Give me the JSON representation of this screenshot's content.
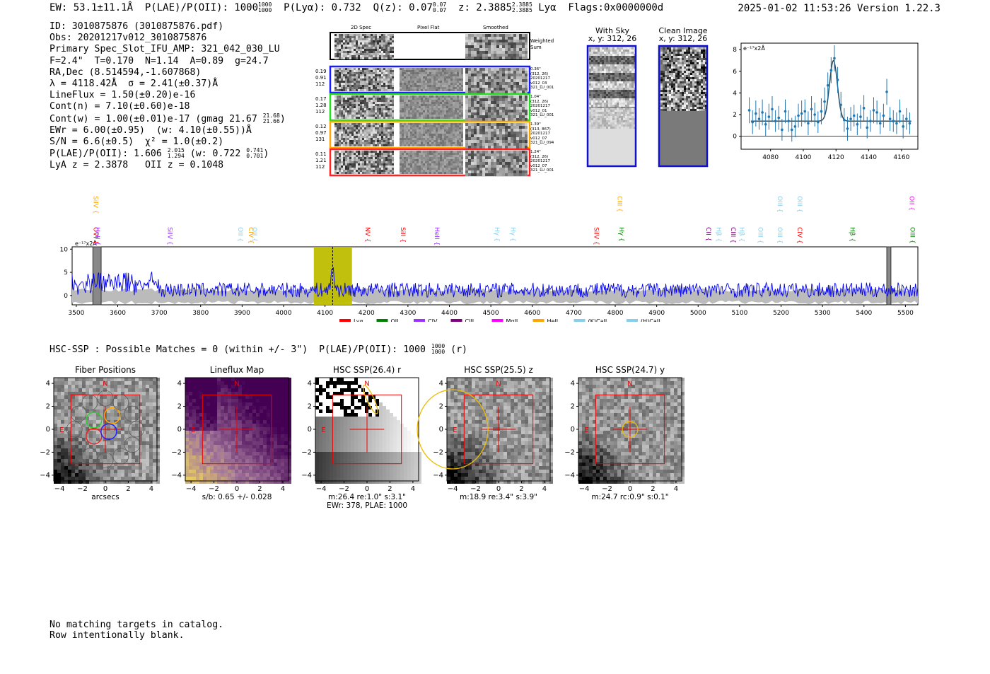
{
  "header": {
    "ew": "EW: 53.1±11.1Å",
    "plae_label": "P(LAE)/P(OII): 1000",
    "plae_hi": "1000",
    "plae_lo": "1000",
    "plya": "P(Lyα): 0.732",
    "qz_label": "Q(z): 0.07",
    "qz_hi": "0.07",
    "qz_lo": "0.07",
    "z_label": "z: 2.3885",
    "z_hi": "2.3885",
    "z_lo": "2.3885",
    "line": "Lyα",
    "flags": "Flags:0x0000000d",
    "timestamp": "2025-01-02 11:53:26",
    "version": "Version 1.22.3"
  },
  "info": {
    "id": "ID: 3010875876 (3010875876.pdf)",
    "obs": "Obs: 20201217v012_3010875876",
    "primary": "Primary Spec_Slot_IFU_AMP: 321_042_030_LU",
    "fits": "F=2.4\"  T=0.170  N=1.14  A=0.89  g=24.7",
    "radec": "RA,Dec (8.514594,-1.607868)",
    "lambda": "λ = 4118.42Å  σ = 2.41(±0.37)Å",
    "lineflux": "LineFlux = 1.50(±0.20)e-16",
    "contn": "Cont(n) = 7.10(±0.60)e-18",
    "contw_label": "Cont(w) = 1.00(±0.01)e-17 (gmag 21.67",
    "contw_hi": "21.68",
    "contw_lo": "21.66",
    "ewr": "EWr = 6.00(±0.95)  (w: 4.10(±0.55))Å",
    "sn": "S/N = 6.6(±0.5)  χ² = 1.0(±0.2)",
    "plae_label": "P(LAE)/P(OII): 1.606",
    "plae_hi": "2.015",
    "plae_lo": "1.294",
    "plae_w": "(w: 0.722",
    "plae_w_hi": "0.741",
    "plae_w_lo": "0.701",
    "zline": "LyA z = 2.3878   OII z = 0.1048"
  },
  "cutouts": {
    "col_2d": "2D Spec",
    "col_flat": "Pixel Flat",
    "col_smooth": "Smoothed",
    "weighted": "Weighted Sum",
    "rows": [
      {
        "meta": [
          "0.19",
          "0.91",
          "112"
        ],
        "note": [
          "0.36\"",
          "(312, 26)",
          "20201217",
          "v012_03",
          "321_LU_001"
        ],
        "color": "#1a1aff"
      },
      {
        "meta": [
          "0.17",
          "1.28",
          "112"
        ],
        "note": [
          "1.04\"",
          "(312, 26)",
          "20201217",
          "v012_01",
          "321_LU_001"
        ],
        "color": "#22dd22"
      },
      {
        "meta": [
          "0.12",
          "0.97",
          "131"
        ],
        "note": [
          "1.39\"",
          "(313, 867)",
          "20201217",
          "v012_07",
          "321_LU_094"
        ],
        "color": "#ffa500"
      },
      {
        "meta": [
          "0.11",
          "1.21",
          "112"
        ],
        "note": [
          "1.24\"",
          "(312, 26)",
          "20201217",
          "v012_07",
          "321_LU_001"
        ],
        "color": "#ff2222"
      }
    ]
  },
  "sky": {
    "with_sky": "With Sky",
    "with_sky_xy": "x, y: 312, 26",
    "clean": "Clean Image",
    "clean_xy": "x, y: 312, 26"
  },
  "fit_plot": {
    "ylabel": "e⁻¹⁷x2Å",
    "xticks": [
      "4080",
      "4100",
      "4120",
      "4140",
      "4160"
    ],
    "yticks": [
      "0",
      "2",
      "4",
      "6",
      "8"
    ],
    "chart_data": {
      "type": "scatter",
      "x": [
        4067,
        4069,
        4071,
        4073,
        4075,
        4077,
        4079,
        4081,
        4083,
        4085,
        4087,
        4089,
        4091,
        4093,
        4095,
        4097,
        4099,
        4101,
        4103,
        4105,
        4107,
        4109,
        4111,
        4113,
        4115,
        4117,
        4119,
        4121,
        4123,
        4125,
        4127,
        4129,
        4131,
        4133,
        4135,
        4137,
        4139,
        4141,
        4143,
        4145,
        4147,
        4149,
        4151,
        4153,
        4155,
        4157,
        4159,
        4161,
        4163,
        4165
      ],
      "y": [
        2.4,
        1.3,
        2.1,
        1.6,
        2.2,
        1.1,
        1.8,
        2.5,
        1.4,
        1.7,
        0.6,
        2.3,
        1.4,
        0.6,
        0.9,
        1.9,
        2.1,
        2.3,
        1.2,
        2.5,
        2.0,
        1.3,
        2.3,
        3.2,
        4.7,
        6.1,
        7.2,
        5.2,
        2.9,
        1.5,
        0.7,
        1.6,
        1.9,
        1.1,
        1.8,
        2.6,
        0.8,
        1.4,
        2.4,
        2.2,
        1.2,
        1.9,
        4.1,
        1.6,
        1.4,
        1.2,
        2.3,
        0.9,
        1.6,
        1.2
      ],
      "err": [
        1.2,
        1.1,
        1.2,
        1.0,
        1.2,
        1.1,
        1.2,
        1.2,
        1.0,
        1.1,
        1.0,
        1.1,
        1.0,
        1.1,
        1.0,
        1.1,
        1.2,
        1.1,
        1.1,
        1.2,
        1.1,
        1.0,
        1.2,
        1.3,
        1.2,
        1.2,
        1.2,
        1.2,
        1.2,
        1.1,
        1.1,
        1.1,
        1.0,
        1.0,
        1.1,
        1.2,
        1.0,
        1.0,
        1.2,
        1.1,
        1.0,
        1.1,
        1.2,
        1.1,
        1.0,
        1.0,
        1.1,
        1.1,
        1.0,
        1.0
      ],
      "fit": {
        "continuum": 1.4,
        "amplitude": 5.6,
        "center": 4118.42,
        "sigma": 2.41
      },
      "xlim": [
        4062,
        4170
      ],
      "ylim": [
        -1.2,
        8.6
      ]
    }
  },
  "spectrum": {
    "ylabel": "e⁻¹⁷x2Å",
    "yticks": [
      "0",
      "5",
      "10"
    ],
    "xticks": [
      "3500",
      "3600",
      "3700",
      "3800",
      "3900",
      "4000",
      "4100",
      "4200",
      "4300",
      "4400",
      "4500",
      "4600",
      "4700",
      "4800",
      "4900",
      "5000",
      "5100",
      "5200",
      "5300",
      "5400",
      "5500"
    ],
    "legend": [
      "Lyα",
      "OII",
      "CIV",
      "CIII",
      "MgII",
      "HeII",
      "(K)CaII",
      "(H)CaII"
    ],
    "legend_colors": [
      "#ff0000",
      "#008000",
      "#9933ff",
      "#800080",
      "#ff00ff",
      "#ffa500",
      "#87ceeb",
      "#87ceeb"
    ],
    "lines": [
      {
        "label": "OVI",
        "color": "#ff0000",
        "row": 1,
        "w": 3542
      },
      {
        "label": "HeII",
        "color": "#9933ff",
        "row": 1,
        "w": 3546
      },
      {
        "label": "SiIV",
        "color": "#ffa500",
        "row": 0,
        "w": 3542
      },
      {
        "label": "SiIV",
        "color": "#9933ff",
        "row": 1,
        "w": 3721
      },
      {
        "label": "OII",
        "color": "#87ceeb",
        "row": 1,
        "w": 3891
      },
      {
        "label": "CIV",
        "color": "#ffa500",
        "row": 1,
        "w": 3916
      },
      {
        "label": "OII",
        "color": "#87ceeb",
        "row": 1,
        "w": 3925
      },
      {
        "label": "NV",
        "color": "#ff0000",
        "row": 1,
        "w": 4198
      },
      {
        "label": "SiII",
        "color": "#ff0000",
        "row": 1,
        "w": 4283
      },
      {
        "label": "HeII",
        "color": "#9933ff",
        "row": 1,
        "w": 4365
      },
      {
        "label": "Hγ",
        "color": "#87ceeb",
        "row": 1,
        "w": 4510
      },
      {
        "label": "Hγ",
        "color": "#87ceeb",
        "row": 1,
        "w": 4548
      },
      {
        "label": "SiIV",
        "color": "#ff0000",
        "row": 1,
        "w": 4750
      },
      {
        "label": "Hγ",
        "color": "#008000",
        "row": 1,
        "w": 4810
      },
      {
        "label": "CIII",
        "color": "#ffa500",
        "row": 0,
        "w": 4806
      },
      {
        "label": "CII",
        "color": "#800080",
        "row": 1,
        "w": 5020
      },
      {
        "label": "Hβ",
        "color": "#87ceeb",
        "row": 1,
        "w": 5045
      },
      {
        "label": "CIII",
        "color": "#800080",
        "row": 1,
        "w": 5080
      },
      {
        "label": "Hβ",
        "color": "#87ceeb",
        "row": 1,
        "w": 5100
      },
      {
        "label": "OIII",
        "color": "#87ceeb",
        "row": 1,
        "w": 5145
      },
      {
        "label": "OIII",
        "color": "#87ceeb",
        "row": 0,
        "w": 5192
      },
      {
        "label": "OIII",
        "color": "#87ceeb",
        "row": 1,
        "w": 5192
      },
      {
        "label": "OIII",
        "color": "#87ceeb",
        "row": 0,
        "w": 5240
      },
      {
        "label": "CIV",
        "color": "#ff0000",
        "row": 1,
        "w": 5240
      },
      {
        "label": "Hβ",
        "color": "#008000",
        "row": 1,
        "w": 5367
      },
      {
        "label": "OII",
        "color": "#ff00ff",
        "row": 0,
        "w": 5510
      },
      {
        "label": "OIII",
        "color": "#008000",
        "row": 1,
        "w": 5512
      }
    ],
    "chart_data": {
      "type": "line",
      "xlim": [
        3490,
        5530
      ],
      "ylim": [
        -2,
        10.5
      ],
      "highlight": [
        4073,
        4165
      ],
      "emission": 4118.4,
      "gray_bands": [
        [
          3540,
          3560
        ],
        [
          5455,
          5465
        ]
      ]
    }
  },
  "hsc": {
    "title": "HSC-SSP : Possible Matches = 0 (within +/- 3\")  P(LAE)/P(OII): 1000",
    "title_hi": "1000",
    "title_lo": "1000",
    "title_band": "(r)",
    "panels": [
      {
        "title": "Fiber Positions",
        "cap1": "arcsecs",
        "cap2": ""
      },
      {
        "title": "Lineflux Map",
        "cap1": "s/b: 0.65 +/- 0.028",
        "cap2": ""
      },
      {
        "title": "HSC SSP(26.4) r",
        "cap1": "m:26.4  re:1.0\"  s:3.1\"",
        "cap2": "EWr: 378, PLAE: 1000"
      },
      {
        "title": "HSC SSP(25.5) z",
        "cap1": "m:18.9  re:3.4\"  s:3.9\"",
        "cap2": ""
      },
      {
        "title": "HSC SSP(24.7) y",
        "cap1": "m:24.7 rc:0.9\"  s:0.1\"",
        "cap2": ""
      }
    ],
    "ticks": [
      "-4",
      "-2",
      "0",
      "2",
      "4"
    ],
    "north": "N",
    "east": "E"
  },
  "footer": {
    "line1": "No matching targets in catalog.",
    "line2": "Row intentionally blank."
  }
}
